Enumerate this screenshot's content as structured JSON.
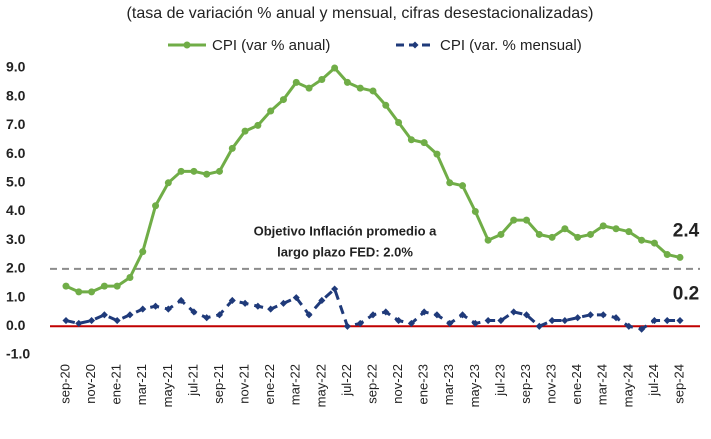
{
  "chart_data": {
    "type": "line",
    "title": "(tasa de variación % anual y mensual, cifras desestacionalizadas)",
    "categories": [
      "sep-20",
      null,
      "nov-20",
      null,
      "ene-21",
      null,
      "mar-21",
      null,
      "may-21",
      null,
      "jul-21",
      null,
      "sep-21",
      null,
      "nov-21",
      null,
      "ene-22",
      null,
      "mar-22",
      null,
      "may-22",
      null,
      "jul-22",
      null,
      "sep-22",
      null,
      "nov-22",
      null,
      "ene-23",
      null,
      "mar-23",
      null,
      "may-23",
      null,
      "jul-23",
      null,
      "sep-23",
      null,
      "nov-23",
      null,
      "ene-24",
      null,
      "mar-24",
      null,
      "may-24",
      null,
      "jul-24",
      null,
      "sep-24"
    ],
    "series": [
      {
        "name": "CPI (var % anual)",
        "color": "#70ad47",
        "marker": "circle",
        "dashed": false,
        "values": [
          1.4,
          1.2,
          1.2,
          1.4,
          1.4,
          1.7,
          2.6,
          4.2,
          5.0,
          5.4,
          5.4,
          5.3,
          5.4,
          6.2,
          6.8,
          7.0,
          7.5,
          7.9,
          8.5,
          8.3,
          8.6,
          9.0,
          8.5,
          8.3,
          8.2,
          7.7,
          7.1,
          6.5,
          6.4,
          6.0,
          5.0,
          4.9,
          4.0,
          3.0,
          3.2,
          3.7,
          3.7,
          3.2,
          3.1,
          3.4,
          3.1,
          3.2,
          3.5,
          3.4,
          3.3,
          3.0,
          2.9,
          2.5,
          2.4
        ]
      },
      {
        "name": "CPI (var. % mensual)",
        "color": "#1f3a7a",
        "marker": "diamond",
        "dashed": true,
        "values": [
          0.2,
          0.1,
          0.2,
          0.4,
          0.2,
          0.4,
          0.6,
          0.7,
          0.6,
          0.9,
          0.5,
          0.3,
          0.4,
          0.9,
          0.8,
          0.7,
          0.6,
          0.8,
          1.0,
          0.4,
          0.9,
          1.3,
          0.0,
          0.1,
          0.4,
          0.5,
          0.2,
          0.1,
          0.5,
          0.4,
          0.1,
          0.4,
          0.1,
          0.2,
          0.2,
          0.5,
          0.4,
          0.0,
          0.2,
          0.2,
          0.3,
          0.4,
          0.4,
          0.3,
          0.0,
          -0.1,
          0.2,
          0.2,
          0.2
        ]
      }
    ],
    "ylim": [
      -1,
      9
    ],
    "yticks": [
      {
        "value": -1,
        "label": "-1.0"
      },
      {
        "value": 0,
        "label": "0.0"
      },
      {
        "value": 1,
        "label": "1.0"
      },
      {
        "value": 2,
        "label": "2.0"
      },
      {
        "value": 3,
        "label": "3.0"
      },
      {
        "value": 4,
        "label": "4.0"
      },
      {
        "value": 5,
        "label": "5.0"
      },
      {
        "value": 6,
        "label": "6.0"
      },
      {
        "value": 7,
        "label": "7.0"
      },
      {
        "value": 8,
        "label": "8.0"
      },
      {
        "value": 9,
        "label": "9.0"
      }
    ],
    "grid": false,
    "baseline_color": "#c00000",
    "reference_line": 2.0,
    "reference_color": "#8c8c8c",
    "annotation": [
      "Objetivo Inflación promedio a",
      "largo plazo FED: 2.0%"
    ],
    "legend": "top"
  }
}
